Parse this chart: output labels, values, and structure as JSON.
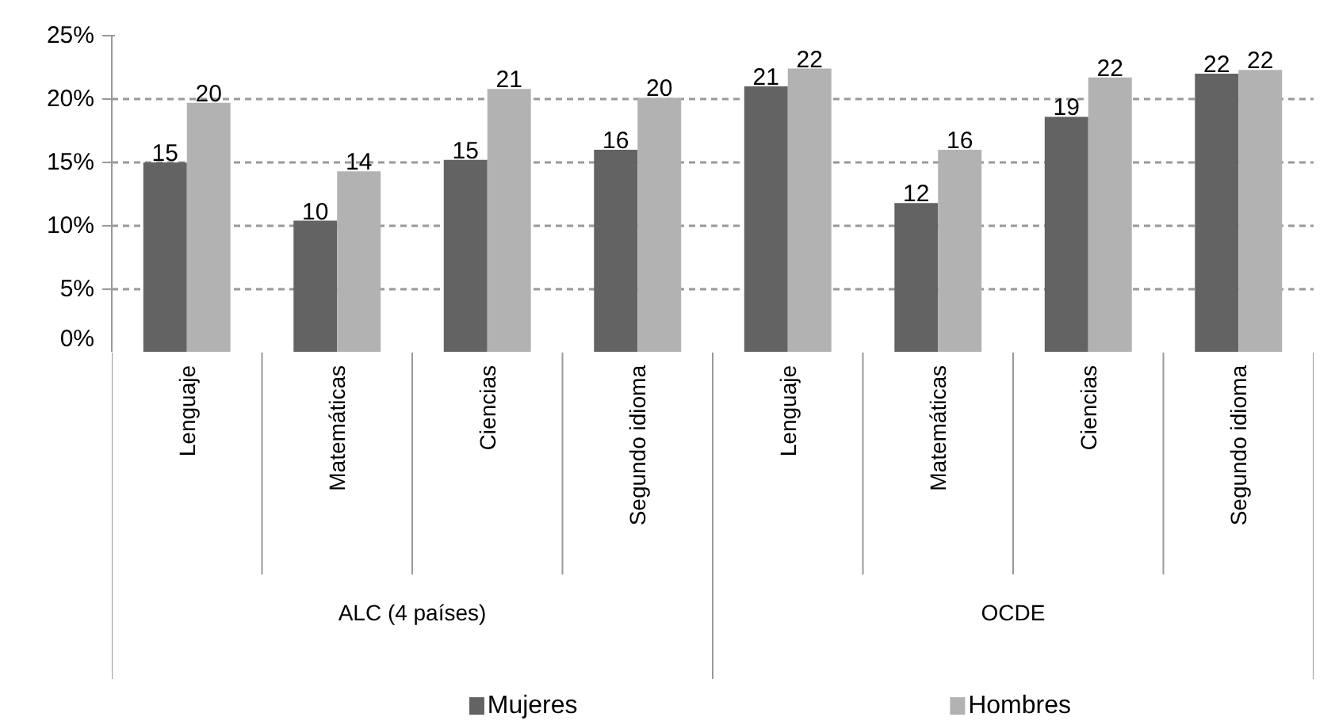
{
  "chart_data": {
    "type": "bar",
    "categories": [
      "Lenguaje",
      "Matemáticas",
      "Ciencias",
      "Segundo idioma",
      "Lenguaje",
      "Matemáticas",
      "Ciencias",
      "Segundo idioma"
    ],
    "series": [
      {
        "name": "Mujeres",
        "color": "#636363",
        "values": [
          15.0,
          10.4,
          15.2,
          16.0,
          21.0,
          11.8,
          18.6,
          22.0
        ],
        "value_labels": [
          "15",
          "10",
          "15",
          "16",
          "21",
          "12",
          "19",
          "22"
        ]
      },
      {
        "name": "Hombres",
        "color": "#b2b2b2",
        "values": [
          19.7,
          14.3,
          20.8,
          20.1,
          22.4,
          16.0,
          21.7,
          22.3
        ],
        "value_labels": [
          "20",
          "14",
          "21",
          "20",
          "22",
          "16",
          "22",
          "22"
        ]
      }
    ],
    "annotations": [
      "ALC (4 países)",
      "OCDE"
    ],
    "ylim": [
      0,
      25
    ],
    "yticks": [
      {
        "value": 0,
        "label": "0%"
      },
      {
        "value": 5,
        "label": "5%"
      },
      {
        "value": 10,
        "label": "10%"
      },
      {
        "value": 15,
        "label": "15%"
      },
      {
        "value": 20,
        "label": "20%"
      },
      {
        "value": 25,
        "label": "25%"
      }
    ],
    "grid": "y",
    "legend": "bottom"
  }
}
